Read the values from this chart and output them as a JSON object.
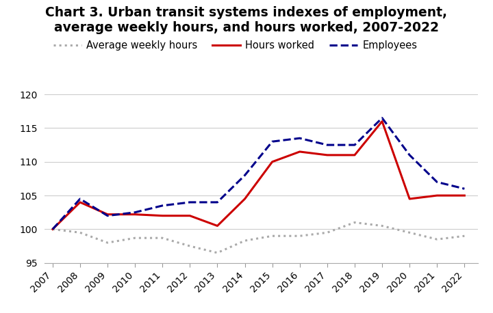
{
  "title_line1": "Chart 3. Urban transit systems indexes of employment,",
  "title_line2": "average weekly hours, and hours worked, 2007-2022",
  "years": [
    2007,
    2008,
    2009,
    2010,
    2011,
    2012,
    2013,
    2014,
    2015,
    2016,
    2017,
    2018,
    2019,
    2020,
    2021,
    2022
  ],
  "avg_weekly_hours": [
    100,
    99.5,
    98.0,
    98.7,
    98.7,
    97.5,
    96.5,
    98.3,
    99.0,
    99.0,
    99.5,
    101.0,
    100.5,
    99.5,
    98.5,
    99.0
  ],
  "hours_worked": [
    100,
    104.0,
    102.2,
    102.2,
    102.0,
    102.0,
    100.5,
    104.5,
    110.0,
    111.5,
    111.0,
    111.0,
    116.0,
    104.5,
    105.0,
    105.0
  ],
  "employees": [
    100,
    104.5,
    102.0,
    102.5,
    103.5,
    104.0,
    104.0,
    108.0,
    113.0,
    113.5,
    112.5,
    112.5,
    116.5,
    111.0,
    107.0,
    106.0
  ],
  "avg_weekly_hours_color": "#aaaaaa",
  "hours_worked_color": "#cc0000",
  "employees_color": "#00008b",
  "ylim": [
    95,
    121
  ],
  "yticks": [
    95,
    100,
    105,
    110,
    115,
    120
  ],
  "background_color": "#ffffff",
  "grid_color": "#cccccc",
  "title_fontsize": 13.5,
  "legend_fontsize": 10.5,
  "tick_fontsize": 10
}
